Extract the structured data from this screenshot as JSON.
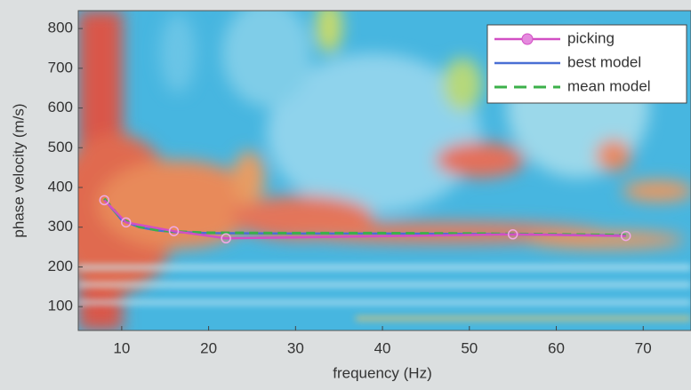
{
  "chart_data": {
    "type": "line",
    "xlabel": "frequency (Hz)",
    "ylabel": "phase velocity (m/s)",
    "xlim": [
      5,
      75.5
    ],
    "ylim": [
      40,
      845
    ],
    "xticks": [
      10,
      20,
      30,
      40,
      50,
      60,
      70
    ],
    "yticks": [
      100,
      200,
      300,
      400,
      500,
      600,
      700,
      800
    ],
    "grid": false,
    "legend": "upper right",
    "series": [
      {
        "name": "picking",
        "color": "#d24fc4",
        "marker": "circle",
        "style": "solid",
        "x": [
          8,
          10.5,
          16,
          22,
          55,
          68
        ],
        "values": [
          368,
          312,
          290,
          272,
          282,
          278
        ]
      },
      {
        "name": "best model",
        "color": "#4a6fd4",
        "style": "solid",
        "x": [
          8,
          10,
          12,
          14,
          16,
          20,
          30,
          40,
          50,
          60,
          68
        ],
        "values": [
          370,
          318,
          300,
          292,
          288,
          285,
          284,
          284,
          283,
          281,
          279
        ]
      },
      {
        "name": "mean model",
        "color": "#3cb04a",
        "style": "dashed",
        "x": [
          8,
          10,
          12,
          14,
          16,
          20,
          30,
          40,
          50,
          60,
          68
        ],
        "values": [
          372,
          320,
          301,
          293,
          289,
          286,
          285,
          285,
          284,
          282,
          280
        ]
      }
    ]
  }
}
